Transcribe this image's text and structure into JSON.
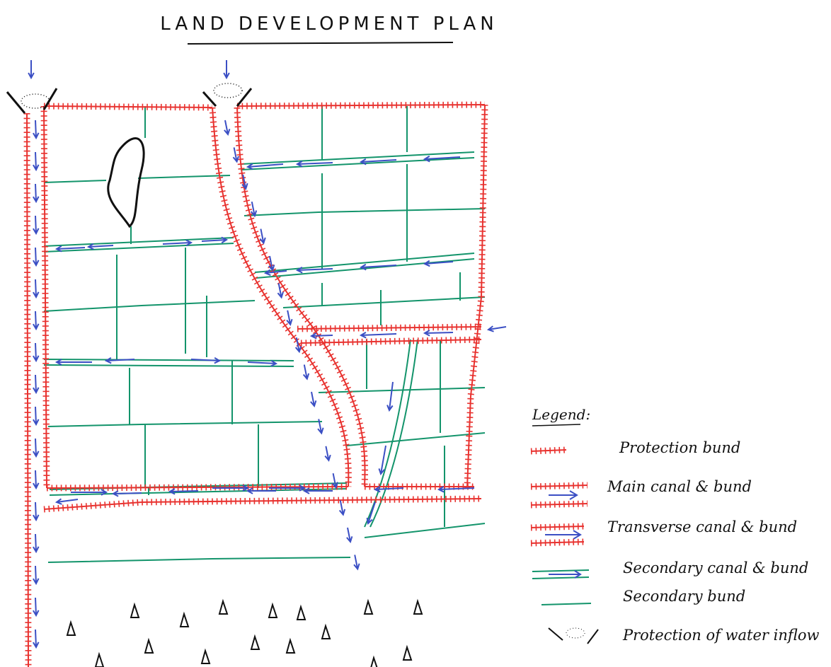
{
  "header": {
    "title": "LAND DEVELOPMENT PLAN"
  },
  "legend": {
    "title": "Legend:",
    "items": [
      "Protection bund",
      "Main canal & bund",
      "Transverse canal & bund",
      "Secondary canal & bund",
      "Secondary bund",
      "Protection of water inflow"
    ]
  }
}
